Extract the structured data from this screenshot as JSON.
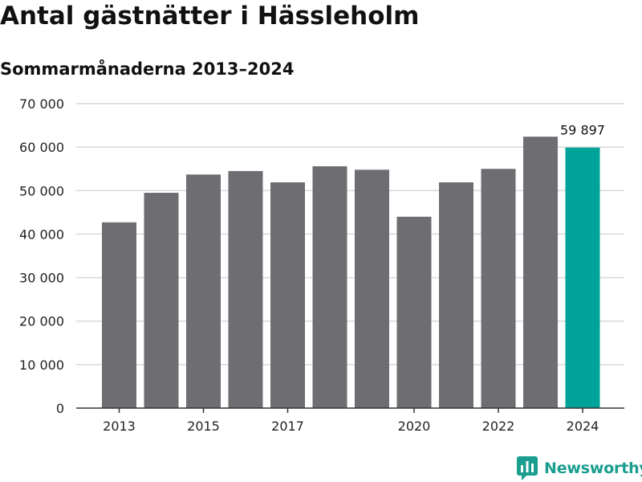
{
  "header": {
    "title": "Antal gästnätter i Hässleholm",
    "subtitle": "Sommarmånaderna 2013–2024"
  },
  "brand": {
    "name": "Newsworthy",
    "icon": "newsworthy-logo-icon",
    "color": "#1a9e8f"
  },
  "chart_data": {
    "type": "bar",
    "title": "Antal gästnätter i Hässleholm",
    "subtitle": "Sommarmånaderna 2013–2024",
    "xlabel": "",
    "ylabel": "",
    "categories": [
      "2013",
      "2014",
      "2015",
      "2016",
      "2017",
      "2018",
      "2019",
      "2020",
      "2021",
      "2022",
      "2023",
      "2024"
    ],
    "values": [
      42700,
      49500,
      53700,
      54500,
      51900,
      55600,
      54800,
      44000,
      51900,
      55000,
      62400,
      59897
    ],
    "ylim": [
      0,
      70000
    ],
    "yticks": [
      0,
      10000,
      20000,
      30000,
      40000,
      50000,
      60000,
      70000
    ],
    "ytick_labels": [
      "0",
      "10 000",
      "20 000",
      "30 000",
      "40 000",
      "50 000",
      "60 000",
      "70 000"
    ],
    "xtick_labels": [
      "2013",
      "2015",
      "2017",
      "2020",
      "2022",
      "2024"
    ],
    "grid": true,
    "annotations": [
      {
        "category": "2024",
        "text": "59 897"
      }
    ],
    "colors": {
      "default": "#6e6d72",
      "highlight": "#00a39a",
      "highlight_category": "2024",
      "grid": "#d9d9d9",
      "axis": "#333333"
    }
  }
}
